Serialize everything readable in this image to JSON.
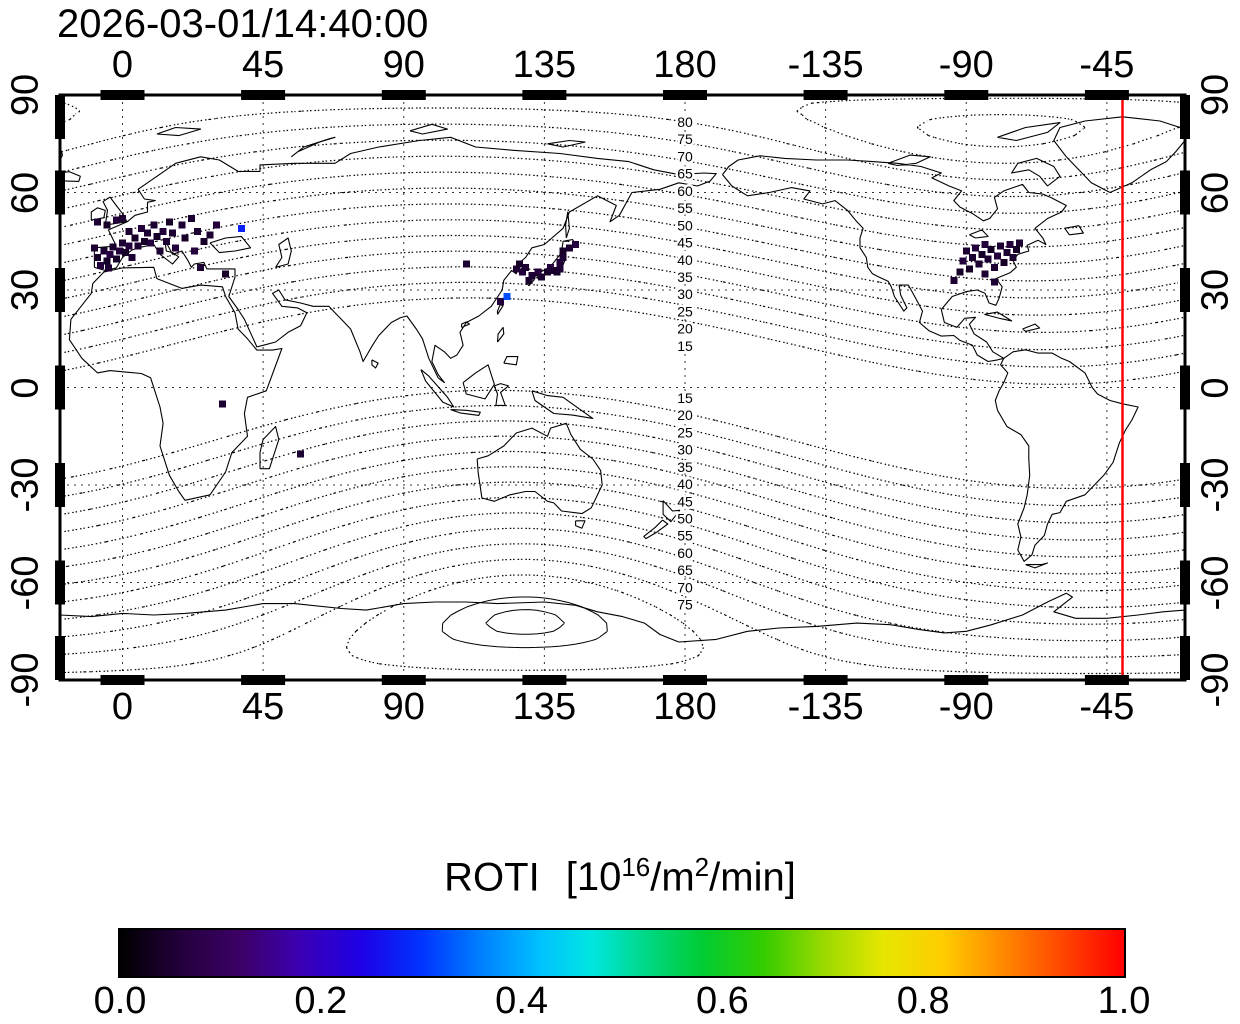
{
  "chart_data": {
    "type": "scatter",
    "title": "2026-03-01/14:40:00",
    "projection": "equirectangular",
    "lon_range": [
      -20,
      340
    ],
    "lat_range": [
      -90,
      90
    ],
    "x_ticks": [
      {
        "lon": 0,
        "label": "0"
      },
      {
        "lon": 45,
        "label": "45"
      },
      {
        "lon": 90,
        "label": "90"
      },
      {
        "lon": 135,
        "label": "135"
      },
      {
        "lon": 180,
        "label": "180"
      },
      {
        "lon": 225,
        "label": "-135"
      },
      {
        "lon": 270,
        "label": "-90"
      },
      {
        "lon": 315,
        "label": "-45"
      }
    ],
    "y_ticks": [
      {
        "lat": 90,
        "label": "90"
      },
      {
        "lat": 60,
        "label": "60"
      },
      {
        "lat": 30,
        "label": "30"
      },
      {
        "lat": 0,
        "label": "0"
      },
      {
        "lat": -30,
        "label": "-30"
      },
      {
        "lat": -60,
        "label": "-60"
      },
      {
        "lat": -90,
        "label": "-90"
      }
    ],
    "grid_lats": [
      60,
      30,
      0,
      -30,
      -60
    ],
    "red_meridian_lon": 320,
    "contours": {
      "levels_north": [
        15,
        20,
        25,
        30,
        35,
        40,
        45,
        50,
        55,
        60,
        65,
        70,
        75,
        80,
        85
      ],
      "levels_south": [
        -15,
        -20,
        -25,
        -30,
        -35,
        -40,
        -45,
        -50,
        -55,
        -60,
        -65,
        -70,
        -75
      ],
      "solid_levels": [
        -82,
        -86
      ],
      "label_lon": 180,
      "labels_north": [
        {
          "text": "80",
          "lat": 81.7
        },
        {
          "text": "75",
          "lat": 76.4
        },
        {
          "text": "70",
          "lat": 71.1
        },
        {
          "text": "65",
          "lat": 65.8
        },
        {
          "text": "60",
          "lat": 60.5
        },
        {
          "text": "55",
          "lat": 55.2
        },
        {
          "text": "50",
          "lat": 49.9
        },
        {
          "text": "45",
          "lat": 44.6
        },
        {
          "text": "40",
          "lat": 39.3
        },
        {
          "text": "35",
          "lat": 34.0
        },
        {
          "text": "30",
          "lat": 28.7
        },
        {
          "text": "25",
          "lat": 23.4
        },
        {
          "text": "20",
          "lat": 18.1
        },
        {
          "text": "15",
          "lat": 12.8
        }
      ],
      "labels_south": [
        {
          "text": "15",
          "lat": -3.2
        },
        {
          "text": "20",
          "lat": -8.5
        },
        {
          "text": "25",
          "lat": -13.8
        },
        {
          "text": "30",
          "lat": -19.1
        },
        {
          "text": "35",
          "lat": -24.4
        },
        {
          "text": "40",
          "lat": -29.7
        },
        {
          "text": "45",
          "lat": -35.0
        },
        {
          "text": "50",
          "lat": -40.3
        },
        {
          "text": "55",
          "lat": -45.6
        },
        {
          "text": "60",
          "lat": -50.9
        },
        {
          "text": "65",
          "lat": -56.2
        },
        {
          "text": "70",
          "lat": -61.5
        },
        {
          "text": "75",
          "lat": -66.8
        }
      ]
    },
    "points_columns": [
      "lon",
      "lat",
      "roti"
    ],
    "points": [
      [
        -8,
        51,
        0.05
      ],
      [
        -5,
        50,
        0.04
      ],
      [
        -2,
        51.5,
        0.06
      ],
      [
        0,
        52,
        0.05
      ],
      [
        -9,
        43,
        0.05
      ],
      [
        -8,
        40,
        0.04
      ],
      [
        -7,
        37.5,
        0.06
      ],
      [
        -6,
        42,
        0.05
      ],
      [
        -5,
        39,
        0.04
      ],
      [
        -4.5,
        36.8,
        0.05
      ],
      [
        -4,
        41,
        0.07
      ],
      [
        -3,
        43.3,
        0.05
      ],
      [
        -2,
        39.5,
        0.04
      ],
      [
        -1,
        42,
        0.06
      ],
      [
        0,
        44.5,
        0.05
      ],
      [
        1,
        41.5,
        0.04
      ],
      [
        2,
        48,
        0.05
      ],
      [
        2,
        43.5,
        0.06
      ],
      [
        3,
        40,
        0.05
      ],
      [
        4,
        46,
        0.04
      ],
      [
        5,
        43.5,
        0.05
      ],
      [
        6,
        49,
        0.06
      ],
      [
        7,
        45,
        0.04
      ],
      [
        8,
        47.5,
        0.05
      ],
      [
        9,
        44.5,
        0.06
      ],
      [
        10,
        50,
        0.05
      ],
      [
        11,
        46.5,
        0.04
      ],
      [
        12,
        42,
        0.05
      ],
      [
        13,
        48,
        0.06
      ],
      [
        14,
        45,
        0.05
      ],
      [
        15,
        51,
        0.04
      ],
      [
        16,
        47.5,
        0.05
      ],
      [
        17,
        43,
        0.06
      ],
      [
        19,
        50,
        0.05
      ],
      [
        20,
        46,
        0.04
      ],
      [
        22,
        52,
        0.05
      ],
      [
        23,
        42,
        0.06
      ],
      [
        24,
        48,
        0.05
      ],
      [
        26,
        45,
        0.04
      ],
      [
        28,
        47,
        0.05
      ],
      [
        30,
        50,
        0.06
      ],
      [
        25,
        37,
        0.05
      ],
      [
        33,
        35,
        0.04
      ],
      [
        38,
        49,
        0.28
      ],
      [
        110,
        38,
        0.05
      ],
      [
        121,
        26.5,
        0.06
      ],
      [
        123,
        28,
        0.32
      ],
      [
        126,
        36.5,
        0.05
      ],
      [
        127,
        38,
        0.04
      ],
      [
        128,
        35.5,
        0.06
      ],
      [
        129,
        37,
        0.05
      ],
      [
        130,
        33,
        0.04
      ],
      [
        131,
        34.5,
        0.05
      ],
      [
        133,
        35.5,
        0.06
      ],
      [
        134,
        34,
        0.05
      ],
      [
        136,
        35.5,
        0.04
      ],
      [
        137,
        37,
        0.06
      ],
      [
        138,
        36,
        0.05
      ],
      [
        139,
        35.5,
        0.04
      ],
      [
        140,
        36.5,
        0.05
      ],
      [
        140,
        38.5,
        0.06
      ],
      [
        141,
        40,
        0.05
      ],
      [
        141,
        42,
        0.04
      ],
      [
        143,
        43,
        0.05
      ],
      [
        145,
        44,
        0.06
      ],
      [
        266,
        33,
        0.05
      ],
      [
        268,
        35.5,
        0.04
      ],
      [
        269,
        39,
        0.06
      ],
      [
        270,
        42,
        0.05
      ],
      [
        271,
        36.5,
        0.04
      ],
      [
        272,
        40,
        0.05
      ],
      [
        273,
        43,
        0.06
      ],
      [
        274,
        38,
        0.05
      ],
      [
        275,
        41,
        0.04
      ],
      [
        276,
        35,
        0.05
      ],
      [
        276,
        44,
        0.06
      ],
      [
        277,
        39.5,
        0.05
      ],
      [
        278,
        42.5,
        0.04
      ],
      [
        279,
        37,
        0.05
      ],
      [
        280,
        40.5,
        0.06
      ],
      [
        281,
        43.5,
        0.05
      ],
      [
        282,
        38.5,
        0.04
      ],
      [
        283,
        41.5,
        0.05
      ],
      [
        284,
        44,
        0.06
      ],
      [
        285,
        40,
        0.05
      ],
      [
        286,
        42.5,
        0.04
      ],
      [
        287,
        44.5,
        0.05
      ],
      [
        279,
        32.5,
        0.05
      ],
      [
        32,
        -5,
        0.05
      ],
      [
        57,
        -20.5,
        0.05
      ]
    ],
    "colorbar": {
      "title_main": "ROTI",
      "title_unit_prefix": "[10",
      "title_unit_sup1": "16",
      "title_unit_mid": "/m",
      "title_unit_sup2": "2",
      "title_unit_suffix": "/min]",
      "tick_labels": [
        "0.0",
        "0.2",
        "0.4",
        "0.6",
        "0.8",
        "1.0"
      ],
      "range": [
        0,
        1
      ],
      "gradient_stops": [
        [
          0.0,
          "#000000"
        ],
        [
          0.06,
          "#23003c"
        ],
        [
          0.12,
          "#3c0066"
        ],
        [
          0.18,
          "#3b00b4"
        ],
        [
          0.24,
          "#1e00e6"
        ],
        [
          0.3,
          "#0033ff"
        ],
        [
          0.36,
          "#0080ff"
        ],
        [
          0.42,
          "#00c3ff"
        ],
        [
          0.47,
          "#00e6e0"
        ],
        [
          0.52,
          "#00d98c"
        ],
        [
          0.58,
          "#00cc33"
        ],
        [
          0.64,
          "#33cc00"
        ],
        [
          0.7,
          "#99d900"
        ],
        [
          0.76,
          "#e6e600"
        ],
        [
          0.82,
          "#ffcc00"
        ],
        [
          0.88,
          "#ff8800"
        ],
        [
          0.94,
          "#ff4400"
        ],
        [
          1.0,
          "#ff0000"
        ]
      ]
    }
  }
}
